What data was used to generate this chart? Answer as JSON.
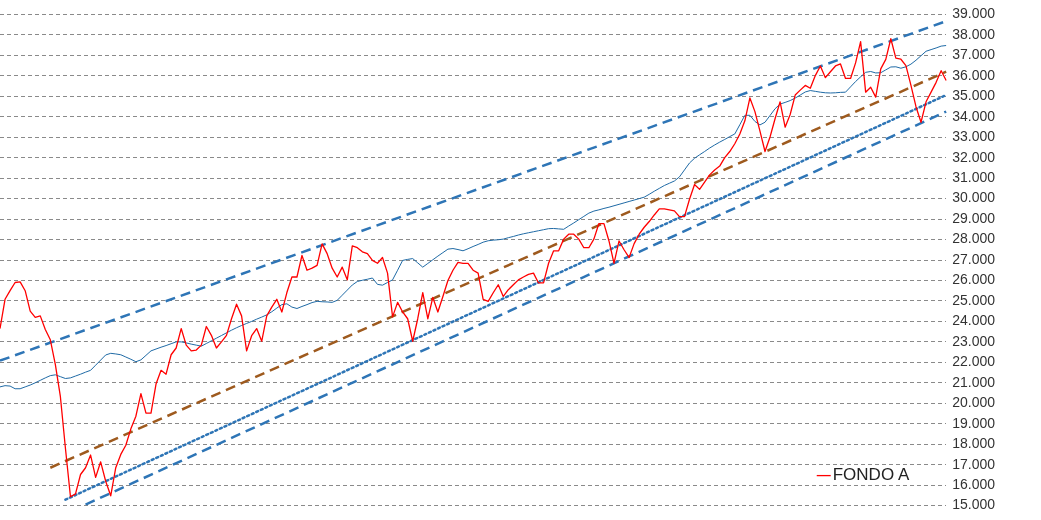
{
  "chart_data": {
    "type": "line",
    "categories": [
      null,
      null,
      null,
      null,
      null,
      null,
      null,
      null,
      null,
      null,
      null,
      null,
      null,
      null,
      null,
      null,
      null,
      null,
      null,
      null,
      null,
      null,
      null,
      null,
      null,
      null,
      null,
      null,
      null,
      null,
      null,
      null,
      null,
      null,
      null,
      null,
      null,
      null,
      null,
      null,
      null,
      null,
      null,
      null,
      null,
      null,
      null,
      null,
      null,
      null,
      null,
      null,
      null,
      null,
      null,
      null,
      null,
      null,
      null,
      null,
      null,
      null,
      null,
      null,
      null,
      null,
      null,
      null,
      null,
      null,
      null,
      null,
      null,
      null,
      null,
      null,
      null,
      null,
      null,
      null,
      null,
      null,
      null,
      null,
      null,
      null,
      null,
      null,
      null,
      null,
      null,
      null,
      null,
      null,
      null,
      null,
      null,
      null,
      null,
      null,
      null,
      null,
      null,
      null,
      null,
      null,
      null,
      null,
      null,
      null,
      null,
      null,
      null,
      null,
      null,
      null,
      null,
      null,
      null,
      null,
      null,
      null,
      null,
      null,
      null,
      null,
      null,
      null,
      null,
      null,
      null,
      null,
      null,
      null,
      null,
      null,
      null,
      null,
      null,
      null,
      null,
      null,
      null,
      null,
      null,
      null,
      null,
      null,
      null,
      null,
      null,
      null,
      null,
      null,
      null,
      null,
      null,
      null,
      null,
      null,
      null,
      null,
      null,
      null,
      null,
      null,
      null,
      null,
      null,
      null,
      null,
      null,
      null,
      null,
      null,
      null,
      null,
      null,
      null,
      null,
      null,
      null,
      null,
      null,
      null,
      null,
      null,
      null,
      null
    ],
    "ylim": [
      15000,
      39000
    ],
    "yticks": [
      {
        "value": 15000,
        "label": "15.000"
      },
      {
        "value": 16000,
        "label": "16.000"
      },
      {
        "value": 17000,
        "label": "17.000"
      },
      {
        "value": 18000,
        "label": "18.000"
      },
      {
        "value": 19000,
        "label": "19.000"
      },
      {
        "value": 20000,
        "label": "20.000"
      },
      {
        "value": 21000,
        "label": "21.000"
      },
      {
        "value": 22000,
        "label": "22.000"
      },
      {
        "value": 23000,
        "label": "23.000"
      },
      {
        "value": 24000,
        "label": "24.000"
      },
      {
        "value": 25000,
        "label": "25.000"
      },
      {
        "value": 26000,
        "label": "26.000"
      },
      {
        "value": 27000,
        "label": "27.000"
      },
      {
        "value": 28000,
        "label": "28.000"
      },
      {
        "value": 29000,
        "label": "29.000"
      },
      {
        "value": 30000,
        "label": "30.000"
      },
      {
        "value": 31000,
        "label": "31.000"
      },
      {
        "value": 32000,
        "label": "32.000"
      },
      {
        "value": 33000,
        "label": "33.000"
      },
      {
        "value": 34000,
        "label": "34.000"
      },
      {
        "value": 35000,
        "label": "35.000"
      },
      {
        "value": 36000,
        "label": "36.000"
      },
      {
        "value": 37000,
        "label": "37.000"
      },
      {
        "value": 38000,
        "label": "38.000"
      },
      {
        "value": 39000,
        "label": "39.000"
      }
    ],
    "tick_labels": "y",
    "grid": "y",
    "legend": "bottom right",
    "marker": "none",
    "series": [
      {
        "name": "FONDO A",
        "color": "#ff0000",
        "line_style": "solid",
        "values": [
          23650,
          25080,
          25500,
          25900,
          25930,
          25500,
          24500,
          24200,
          24270,
          23600,
          23100,
          21890,
          20320,
          17800,
          15430,
          15570,
          16520,
          16850,
          17470,
          16380,
          17140,
          16190,
          15480,
          16850,
          17500,
          17950,
          18750,
          19370,
          20470,
          19520,
          19520,
          20940,
          21610,
          21420,
          22370,
          22700,
          23650,
          22840,
          22560,
          22600,
          22840,
          23750,
          23320,
          22700,
          23000,
          23320,
          24130,
          24840,
          24270,
          22560,
          23300,
          23650,
          23030,
          24270,
          24700,
          25080,
          24460,
          25410,
          26170,
          26170,
          27220,
          26500,
          26600,
          26740,
          27790,
          27310,
          26600,
          26170,
          26650,
          26030,
          27690,
          27600,
          27400,
          27310,
          26980,
          26840,
          27120,
          26360,
          24220,
          24930,
          24460,
          24130,
          23030,
          24130,
          25410,
          24130,
          25170,
          24460,
          25220,
          26000,
          26500,
          26880,
          26840,
          26840,
          26500,
          26360,
          25080,
          24980,
          25400,
          25790,
          25220,
          25550,
          25790,
          26030,
          26170,
          26300,
          26360,
          25880,
          25880,
          26840,
          27450,
          27450,
          28020,
          28260,
          28260,
          28020,
          27600,
          27600,
          28020,
          28780,
          28780,
          27930,
          26840,
          27930,
          27500,
          27120,
          27800,
          28260,
          28600,
          28880,
          29200,
          29500,
          29500,
          29450,
          29400,
          29120,
          29120,
          29970,
          30690,
          30450,
          30800,
          31160,
          31400,
          31590,
          32000,
          32300,
          32680,
          33160,
          33800,
          34920,
          34250,
          33300,
          32300,
          33010,
          33900,
          34730,
          33490,
          34110,
          35060,
          35300,
          35530,
          35390,
          36010,
          36480,
          35910,
          36200,
          36480,
          36580,
          35870,
          35870,
          36630,
          37670,
          35200,
          35440,
          34960,
          36340,
          36800,
          37810,
          36860,
          36810,
          36500,
          35530,
          34490,
          33730,
          34730,
          35200,
          35680,
          36250,
          35770
        ]
      },
      {
        "color": "#1f6aa5",
        "line_style": "solid",
        "values": [
          20800,
          20860,
          20840,
          20710,
          20710,
          20800,
          20890,
          21000,
          21120,
          21240,
          21350,
          21390,
          21300,
          21210,
          21240,
          21330,
          21420,
          21520,
          21610,
          21860,
          22110,
          22360,
          22440,
          22410,
          22370,
          22260,
          22150,
          22030,
          22120,
          22340,
          22560,
          22650,
          22740,
          22820,
          22910,
          23000,
          23000,
          22950,
          22890,
          22840,
          22790,
          22920,
          23050,
          23180,
          23310,
          23440,
          23570,
          23690,
          23800,
          23900,
          24000,
          24110,
          24210,
          24320,
          24470,
          24650,
          24820,
          24860,
          24700,
          24630,
          24730,
          24820,
          24920,
          24980,
          24960,
          24950,
          24930,
          25030,
          25280,
          25530,
          25780,
          25950,
          26010,
          26060,
          26120,
          25810,
          25770,
          25900,
          26030,
          26500,
          26980,
          27030,
          27070,
          26860,
          26650,
          26830,
          27010,
          27190,
          27360,
          27530,
          27560,
          27510,
          27450,
          27550,
          27660,
          27760,
          27870,
          27940,
          27970,
          27990,
          28020,
          28090,
          28150,
          28220,
          28280,
          28330,
          28380,
          28430,
          28480,
          28530,
          28540,
          28520,
          28500,
          28660,
          28810,
          28970,
          29130,
          29290,
          29390,
          29450,
          29520,
          29580,
          29650,
          29720,
          29790,
          29860,
          29930,
          30000,
          30070,
          30210,
          30360,
          30500,
          30640,
          30750,
          30860,
          31060,
          31400,
          31740,
          31970,
          32140,
          32300,
          32470,
          32620,
          32760,
          32890,
          33030,
          33160,
          33610,
          34070,
          34070,
          33770,
          33600,
          33730,
          34060,
          34390,
          34620,
          34700,
          34790,
          34910,
          35060,
          35210,
          35280,
          35240,
          35200,
          35170,
          35160,
          35170,
          35190,
          35200,
          35460,
          35720,
          35950,
          36170,
          36210,
          36140,
          36150,
          36290,
          36430,
          36440,
          36370,
          36440,
          36570,
          36760,
          36980,
          37200,
          37280,
          37360,
          37450,
          37480
        ]
      },
      {
        "color": "#2e75b6",
        "line_style": "dashed",
        "values": [
          22080,
          null,
          null,
          null,
          null,
          null,
          null,
          null,
          null,
          null,
          null,
          null,
          null,
          null,
          null,
          null,
          null,
          null,
          null,
          null,
          null,
          null,
          null,
          null,
          null,
          null,
          null,
          null,
          null,
          null,
          null,
          null,
          null,
          null,
          null,
          null,
          null,
          null,
          null,
          null,
          null,
          null,
          null,
          null,
          null,
          null,
          null,
          null,
          null,
          null,
          null,
          null,
          null,
          null,
          null,
          null,
          null,
          null,
          null,
          null,
          null,
          null,
          null,
          null,
          null,
          null,
          null,
          null,
          null,
          null,
          null,
          null,
          null,
          null,
          null,
          null,
          null,
          null,
          null,
          null,
          null,
          null,
          null,
          null,
          null,
          null,
          null,
          null,
          null,
          null,
          null,
          null,
          null,
          null,
          null,
          null,
          null,
          null,
          null,
          null,
          null,
          null,
          null,
          null,
          null,
          null,
          null,
          null,
          null,
          null,
          null,
          null,
          null,
          null,
          null,
          null,
          null,
          null,
          null,
          null,
          null,
          null,
          null,
          null,
          null,
          null,
          null,
          null,
          null,
          null,
          null,
          null,
          null,
          null,
          null,
          null,
          null,
          null,
          null,
          null,
          null,
          null,
          null,
          null,
          null,
          null,
          null,
          null,
          null,
          null,
          null,
          null,
          null,
          null,
          null,
          null,
          null,
          null,
          null,
          null,
          null,
          null,
          null,
          null,
          null,
          null,
          null,
          null,
          null,
          null,
          null,
          null,
          null,
          null,
          null,
          null,
          null,
          null,
          null,
          null,
          null,
          null,
          null,
          null,
          null,
          null,
          null,
          null,
          38670
        ]
      },
      {
        "color": "#9e5a1e",
        "line_style": "dashed",
        "values": [
          null,
          null,
          null,
          null,
          null,
          null,
          null,
          null,
          null,
          null,
          16850,
          null,
          null,
          null,
          null,
          null,
          null,
          null,
          null,
          null,
          null,
          null,
          null,
          null,
          null,
          null,
          null,
          null,
          null,
          null,
          null,
          null,
          null,
          null,
          null,
          null,
          null,
          null,
          null,
          null,
          null,
          null,
          null,
          null,
          null,
          null,
          null,
          null,
          null,
          null,
          null,
          null,
          null,
          null,
          null,
          null,
          null,
          null,
          null,
          null,
          null,
          null,
          null,
          null,
          null,
          null,
          null,
          null,
          null,
          null,
          null,
          null,
          null,
          null,
          null,
          null,
          null,
          null,
          null,
          null,
          null,
          null,
          null,
          null,
          null,
          null,
          null,
          null,
          null,
          null,
          null,
          null,
          null,
          null,
          null,
          null,
          null,
          null,
          null,
          null,
          null,
          null,
          null,
          null,
          null,
          null,
          null,
          null,
          null,
          null,
          null,
          null,
          null,
          null,
          null,
          null,
          null,
          null,
          null,
          null,
          null,
          null,
          null,
          null,
          null,
          null,
          null,
          null,
          null,
          null,
          null,
          null,
          null,
          null,
          null,
          null,
          null,
          null,
          null,
          null,
          null,
          null,
          null,
          null,
          null,
          null,
          null,
          null,
          null,
          null,
          null,
          null,
          null,
          null,
          null,
          null,
          null,
          null,
          null,
          null,
          null,
          null,
          null,
          null,
          null,
          null,
          null,
          null,
          null,
          null,
          null,
          null,
          null,
          null,
          null,
          null,
          null,
          null,
          null,
          null,
          null,
          null,
          null,
          null,
          null,
          null,
          null,
          null,
          36200
        ]
      },
      {
        "color": "#2e75b6",
        "line_style": "dotted",
        "values": [
          null,
          null,
          null,
          null,
          null,
          null,
          null,
          null,
          null,
          null,
          null,
          null,
          null,
          15290,
          null,
          null,
          null,
          null,
          null,
          null,
          null,
          null,
          null,
          null,
          null,
          null,
          null,
          null,
          null,
          null,
          null,
          null,
          null,
          null,
          null,
          null,
          null,
          null,
          null,
          null,
          null,
          null,
          null,
          null,
          null,
          null,
          null,
          null,
          null,
          null,
          null,
          null,
          null,
          null,
          null,
          null,
          null,
          null,
          null,
          null,
          null,
          null,
          null,
          null,
          null,
          null,
          null,
          null,
          null,
          null,
          null,
          null,
          null,
          null,
          null,
          null,
          null,
          null,
          null,
          null,
          null,
          null,
          null,
          null,
          null,
          null,
          null,
          null,
          null,
          null,
          null,
          null,
          null,
          null,
          null,
          null,
          null,
          null,
          null,
          null,
          null,
          null,
          null,
          null,
          null,
          null,
          null,
          null,
          null,
          null,
          null,
          null,
          null,
          null,
          null,
          null,
          null,
          null,
          null,
          null,
          null,
          null,
          null,
          null,
          null,
          null,
          null,
          null,
          null,
          null,
          null,
          null,
          null,
          null,
          null,
          null,
          null,
          null,
          null,
          null,
          null,
          null,
          null,
          null,
          null,
          null,
          null,
          null,
          null,
          null,
          null,
          null,
          null,
          null,
          null,
          null,
          null,
          null,
          null,
          null,
          null,
          null,
          null,
          null,
          null,
          null,
          null,
          null,
          null,
          null,
          null,
          null,
          null,
          null,
          null,
          null,
          null,
          null,
          null,
          null,
          null,
          null,
          null,
          null,
          null,
          null,
          null,
          null,
          35060
        ]
      },
      {
        "color": "#2e75b6",
        "line_style": "dashed",
        "values": [
          null,
          null,
          null,
          null,
          null,
          null,
          null,
          null,
          null,
          null,
          null,
          null,
          null,
          null,
          null,
          null,
          null,
          15050,
          null,
          null,
          null,
          null,
          null,
          null,
          null,
          null,
          null,
          null,
          null,
          null,
          null,
          null,
          null,
          null,
          null,
          null,
          null,
          null,
          null,
          null,
          null,
          null,
          null,
          null,
          null,
          null,
          null,
          null,
          null,
          null,
          null,
          null,
          null,
          null,
          null,
          null,
          null,
          null,
          null,
          null,
          null,
          null,
          null,
          null,
          null,
          null,
          null,
          null,
          null,
          null,
          null,
          null,
          null,
          null,
          null,
          null,
          null,
          null,
          null,
          null,
          null,
          null,
          null,
          null,
          null,
          null,
          null,
          null,
          null,
          null,
          null,
          null,
          null,
          null,
          null,
          null,
          null,
          null,
          null,
          null,
          null,
          null,
          null,
          null,
          null,
          null,
          null,
          null,
          null,
          null,
          null,
          null,
          null,
          null,
          null,
          null,
          null,
          null,
          null,
          null,
          null,
          null,
          null,
          null,
          null,
          null,
          null,
          null,
          null,
          null,
          null,
          null,
          null,
          null,
          null,
          null,
          null,
          null,
          null,
          null,
          null,
          null,
          null,
          null,
          null,
          null,
          null,
          null,
          null,
          null,
          null,
          null,
          null,
          null,
          null,
          null,
          null,
          null,
          null,
          null,
          null,
          null,
          null,
          null,
          null,
          null,
          null,
          null,
          null,
          null,
          null,
          null,
          null,
          null,
          null,
          null,
          null,
          null,
          null,
          null,
          null,
          null,
          null,
          null,
          null,
          null,
          null,
          null,
          34250
        ]
      }
    ]
  }
}
